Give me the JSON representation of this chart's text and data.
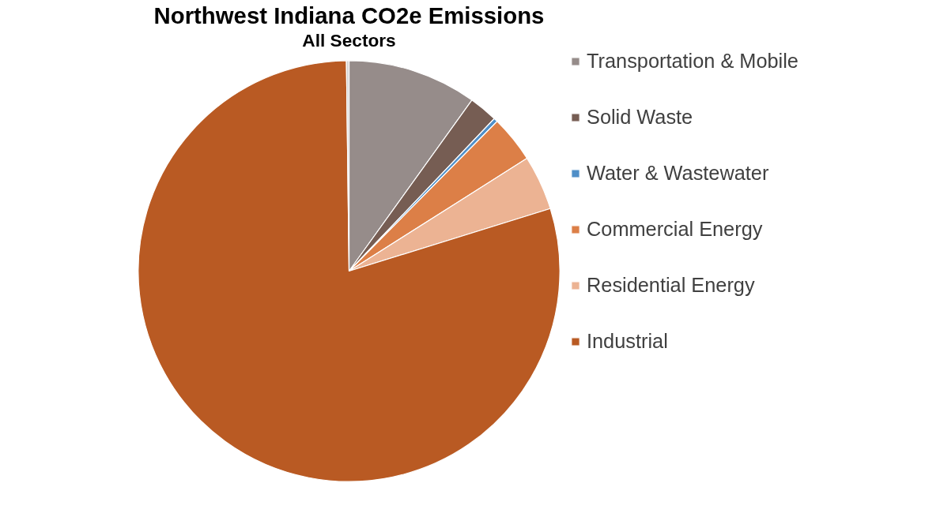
{
  "chart_data": {
    "type": "pie",
    "title": "Northwest Indiana CO2e Emissions",
    "subtitle": "All Sectors",
    "categories": [
      "Transportation & Mobile",
      "Solid Waste",
      "Water & Wastewater",
      "Commercial Energy",
      "Residential Energy",
      "Industrial",
      null
    ],
    "values": [
      9.9,
      2.2,
      0.3,
      3.6,
      4.2,
      79.6,
      0.2
    ],
    "colors": [
      "#968c8a",
      "#765d53",
      "#4f8fc8",
      "#dc7f47",
      "#ecb393",
      "#b95a23",
      "#d4d4d4"
    ],
    "legend": "right"
  }
}
